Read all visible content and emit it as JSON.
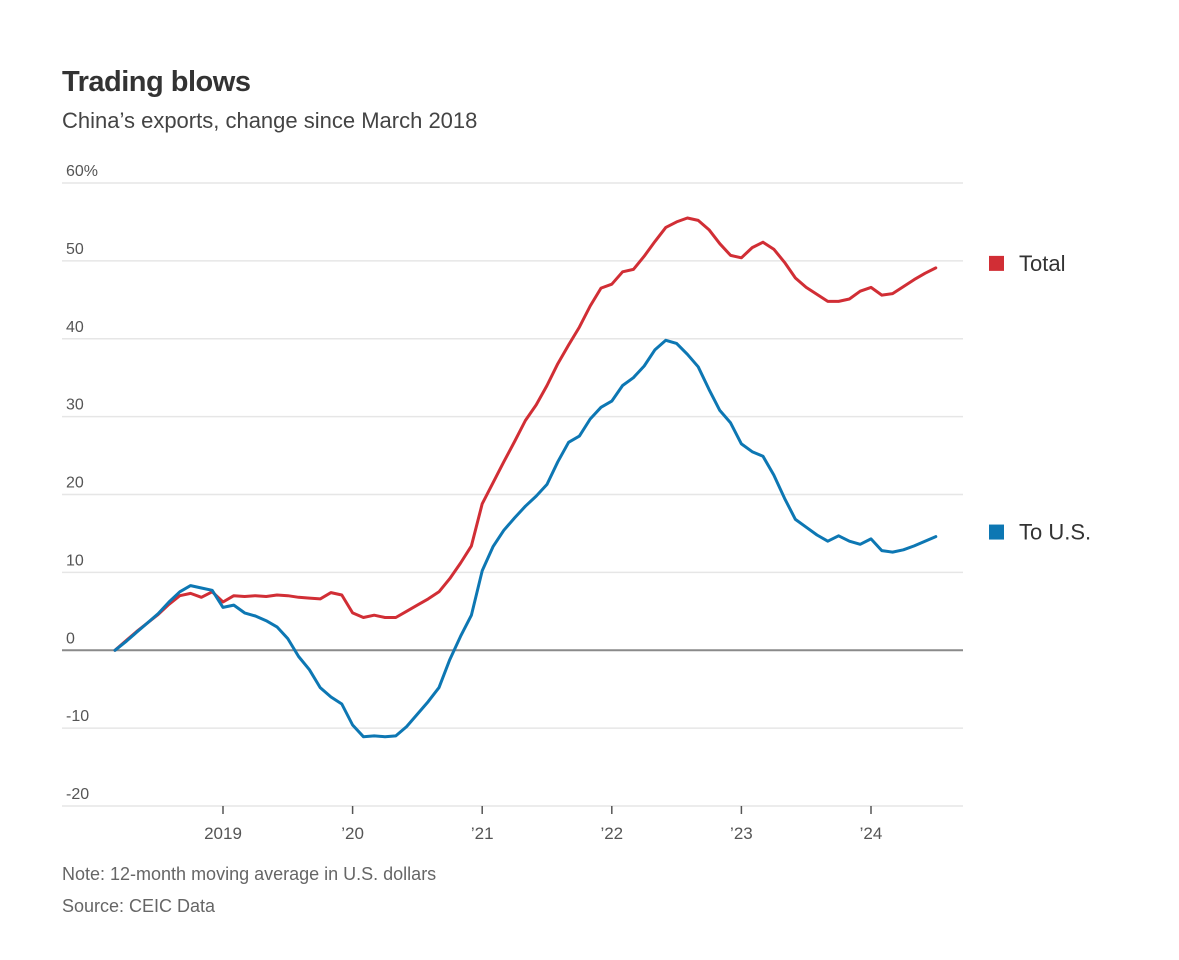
{
  "header": {
    "title": "Trading blows",
    "subtitle": "China’s exports, change since March 2018"
  },
  "footer": {
    "note": "Note: 12-month moving average in U.S. dollars",
    "source": "Source: CEIC Data"
  },
  "chart_data": {
    "type": "line",
    "title": "Trading blows",
    "subtitle": "China’s exports, change since March 2018",
    "xlabel": "",
    "ylabel": "",
    "ylim": [
      -20,
      60
    ],
    "xlim": [
      "2018-03",
      "2024-07"
    ],
    "y_ticks": [
      {
        "value": 60,
        "label": "60%"
      },
      {
        "value": 50,
        "label": "50"
      },
      {
        "value": 40,
        "label": "40"
      },
      {
        "value": 30,
        "label": "30"
      },
      {
        "value": 20,
        "label": "20"
      },
      {
        "value": 10,
        "label": "10"
      },
      {
        "value": 0,
        "label": "0"
      },
      {
        "value": -10,
        "label": "-10"
      },
      {
        "value": -20,
        "label": "-20"
      }
    ],
    "x_ticks": [
      {
        "value": "2019-01",
        "label": "2019"
      },
      {
        "value": "2020-01",
        "label": "’20"
      },
      {
        "value": "2021-01",
        "label": "’21"
      },
      {
        "value": "2022-01",
        "label": "’22"
      },
      {
        "value": "2023-01",
        "label": "’23"
      },
      {
        "value": "2024-01",
        "label": "’24"
      }
    ],
    "grid": true,
    "legend_placement": "right, beside line ends",
    "series": [
      {
        "name": "Total",
        "color": "#d12e35",
        "points": [
          [
            "2018-03",
            0
          ],
          [
            "2018-04",
            1.2
          ],
          [
            "2018-05",
            2.4
          ],
          [
            "2018-06",
            3.5
          ],
          [
            "2018-07",
            4.6
          ],
          [
            "2018-08",
            5.9
          ],
          [
            "2018-09",
            7.0
          ],
          [
            "2018-10",
            7.3
          ],
          [
            "2018-11",
            6.8
          ],
          [
            "2018-12",
            7.5
          ],
          [
            "2019-01",
            6.2
          ],
          [
            "2019-02",
            7.0
          ],
          [
            "2019-03",
            6.9
          ],
          [
            "2019-04",
            7.0
          ],
          [
            "2019-05",
            6.9
          ],
          [
            "2019-06",
            7.1
          ],
          [
            "2019-07",
            7.0
          ],
          [
            "2019-08",
            6.8
          ],
          [
            "2019-09",
            6.7
          ],
          [
            "2019-10",
            6.6
          ],
          [
            "2019-11",
            7.4
          ],
          [
            "2019-12",
            7.1
          ],
          [
            "2020-01",
            4.8
          ],
          [
            "2020-02",
            4.2
          ],
          [
            "2020-03",
            4.5
          ],
          [
            "2020-04",
            4.2
          ],
          [
            "2020-05",
            4.2
          ],
          [
            "2020-06",
            5.0
          ],
          [
            "2020-07",
            5.8
          ],
          [
            "2020-08",
            6.6
          ],
          [
            "2020-09",
            7.5
          ],
          [
            "2020-10",
            9.2
          ],
          [
            "2020-11",
            11.2
          ],
          [
            "2020-12",
            13.4
          ],
          [
            "2021-01",
            18.8
          ],
          [
            "2021-02",
            21.5
          ],
          [
            "2021-03",
            24.2
          ],
          [
            "2021-04",
            26.8
          ],
          [
            "2021-05",
            29.5
          ],
          [
            "2021-06",
            31.5
          ],
          [
            "2021-07",
            34.0
          ],
          [
            "2021-08",
            36.8
          ],
          [
            "2021-09",
            39.2
          ],
          [
            "2021-10",
            41.5
          ],
          [
            "2021-11",
            44.2
          ],
          [
            "2021-12",
            46.5
          ],
          [
            "2022-01",
            47.0
          ],
          [
            "2022-02",
            48.6
          ],
          [
            "2022-03",
            48.9
          ],
          [
            "2022-04",
            50.6
          ],
          [
            "2022-05",
            52.5
          ],
          [
            "2022-06",
            54.3
          ],
          [
            "2022-07",
            55.0
          ],
          [
            "2022-08",
            55.5
          ],
          [
            "2022-09",
            55.2
          ],
          [
            "2022-10",
            54.0
          ],
          [
            "2022-11",
            52.2
          ],
          [
            "2022-12",
            50.7
          ],
          [
            "2023-01",
            50.4
          ],
          [
            "2023-02",
            51.7
          ],
          [
            "2023-03",
            52.4
          ],
          [
            "2023-04",
            51.5
          ],
          [
            "2023-05",
            49.8
          ],
          [
            "2023-06",
            47.8
          ],
          [
            "2023-07",
            46.6
          ],
          [
            "2023-08",
            45.7
          ],
          [
            "2023-09",
            44.8
          ],
          [
            "2023-10",
            44.8
          ],
          [
            "2023-11",
            45.1
          ],
          [
            "2023-12",
            46.1
          ],
          [
            "2024-01",
            46.6
          ],
          [
            "2024-02",
            45.6
          ],
          [
            "2024-03",
            45.8
          ],
          [
            "2024-04",
            46.7
          ],
          [
            "2024-05",
            47.6
          ],
          [
            "2024-06",
            48.4
          ],
          [
            "2024-07",
            49.1
          ]
        ]
      },
      {
        "name": "To U.S.",
        "color": "#0d77b3",
        "points": [
          [
            "2018-03",
            0
          ],
          [
            "2018-04",
            1.1
          ],
          [
            "2018-05",
            2.3
          ],
          [
            "2018-06",
            3.5
          ],
          [
            "2018-07",
            4.7
          ],
          [
            "2018-08",
            6.2
          ],
          [
            "2018-09",
            7.5
          ],
          [
            "2018-10",
            8.3
          ],
          [
            "2018-11",
            8.0
          ],
          [
            "2018-12",
            7.7
          ],
          [
            "2019-01",
            5.5
          ],
          [
            "2019-02",
            5.8
          ],
          [
            "2019-03",
            4.8
          ],
          [
            "2019-04",
            4.4
          ],
          [
            "2019-05",
            3.8
          ],
          [
            "2019-06",
            3.0
          ],
          [
            "2019-07",
            1.5
          ],
          [
            "2019-08",
            -0.8
          ],
          [
            "2019-09",
            -2.5
          ],
          [
            "2019-10",
            -4.8
          ],
          [
            "2019-11",
            -6.0
          ],
          [
            "2019-12",
            -6.9
          ],
          [
            "2020-01",
            -9.6
          ],
          [
            "2020-02",
            -11.1
          ],
          [
            "2020-03",
            -11.0
          ],
          [
            "2020-04",
            -11.1
          ],
          [
            "2020-05",
            -11.0
          ],
          [
            "2020-06",
            -9.8
          ],
          [
            "2020-07",
            -8.2
          ],
          [
            "2020-08",
            -6.6
          ],
          [
            "2020-09",
            -4.8
          ],
          [
            "2020-10",
            -1.2
          ],
          [
            "2020-11",
            1.8
          ],
          [
            "2020-12",
            4.5
          ],
          [
            "2021-01",
            10.2
          ],
          [
            "2021-02",
            13.3
          ],
          [
            "2021-03",
            15.4
          ],
          [
            "2021-04",
            17.0
          ],
          [
            "2021-05",
            18.5
          ],
          [
            "2021-06",
            19.8
          ],
          [
            "2021-07",
            21.3
          ],
          [
            "2021-08",
            24.2
          ],
          [
            "2021-09",
            26.7
          ],
          [
            "2021-10",
            27.5
          ],
          [
            "2021-11",
            29.7
          ],
          [
            "2021-12",
            31.2
          ],
          [
            "2022-01",
            32.0
          ],
          [
            "2022-02",
            34.0
          ],
          [
            "2022-03",
            35.0
          ],
          [
            "2022-04",
            36.5
          ],
          [
            "2022-05",
            38.6
          ],
          [
            "2022-06",
            39.8
          ],
          [
            "2022-07",
            39.4
          ],
          [
            "2022-08",
            38.0
          ],
          [
            "2022-09",
            36.4
          ],
          [
            "2022-10",
            33.5
          ],
          [
            "2022-11",
            30.8
          ],
          [
            "2022-12",
            29.2
          ],
          [
            "2023-01",
            26.5
          ],
          [
            "2023-02",
            25.5
          ],
          [
            "2023-03",
            24.9
          ],
          [
            "2023-04",
            22.5
          ],
          [
            "2023-05",
            19.5
          ],
          [
            "2023-06",
            16.8
          ],
          [
            "2023-07",
            15.8
          ],
          [
            "2023-08",
            14.8
          ],
          [
            "2023-09",
            14.0
          ],
          [
            "2023-10",
            14.7
          ],
          [
            "2023-11",
            14.0
          ],
          [
            "2023-12",
            13.6
          ],
          [
            "2024-01",
            14.3
          ],
          [
            "2024-02",
            12.8
          ],
          [
            "2024-03",
            12.6
          ],
          [
            "2024-04",
            12.9
          ],
          [
            "2024-05",
            13.4
          ],
          [
            "2024-06",
            14.0
          ],
          [
            "2024-07",
            14.6
          ]
        ]
      }
    ],
    "legend": [
      {
        "label": "Total",
        "color": "#d12e35"
      },
      {
        "label": "To U.S.",
        "color": "#0d77b3"
      }
    ]
  }
}
